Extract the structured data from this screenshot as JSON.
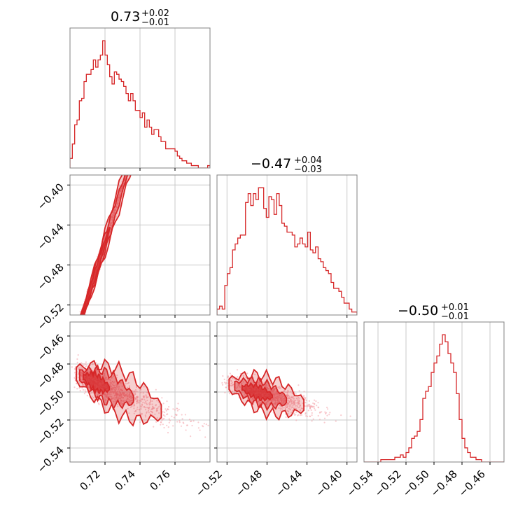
{
  "chart_data": {
    "type": "corner",
    "color": "#d62728",
    "parameters": [
      {
        "title": {
          "median": "0.73",
          "plus": "+0.02",
          "minus": "−0.01"
        },
        "range": [
          0.7,
          0.78
        ],
        "ticks": [
          0.72,
          0.74,
          0.76
        ],
        "tick_labels": [
          "0.72",
          "0.74",
          "0.76"
        ]
      },
      {
        "title": {
          "median": "−0.47",
          "plus": "+0.04",
          "minus": "−0.03"
        },
        "range": [
          -0.53,
          -0.39
        ],
        "ticks": [
          -0.52,
          -0.48,
          -0.44,
          -0.4
        ],
        "tick_labels": [
          "−0.52",
          "−0.48",
          "−0.44",
          "−0.40"
        ]
      },
      {
        "title": {
          "median": "−0.50",
          "plus": "+0.01",
          "minus": "−0.01"
        },
        "range": [
          -0.55,
          -0.45
        ],
        "ticks": [
          -0.54,
          -0.52,
          -0.5,
          -0.48,
          -0.46
        ],
        "tick_labels": [
          "−0.54",
          "−0.52",
          "−0.50",
          "−0.48",
          "−0.46"
        ]
      }
    ],
    "histograms": [
      {
        "param": 0,
        "counts": [
          4,
          10,
          18,
          20,
          28,
          29,
          36,
          39,
          39,
          41,
          45,
          42,
          45,
          47,
          53,
          47,
          43,
          38,
          35,
          40,
          39,
          37,
          36,
          34,
          31,
          28,
          31,
          28,
          24,
          24,
          21,
          23,
          17,
          20,
          17,
          14,
          16,
          16,
          13,
          11,
          11,
          8,
          8,
          8,
          8,
          7,
          5,
          4,
          3,
          3,
          2,
          2,
          1,
          1,
          1,
          0,
          0,
          0,
          0,
          1
        ]
      },
      {
        "param": 1,
        "counts": [
          2,
          3,
          2,
          10,
          14,
          16,
          22,
          24,
          26,
          27,
          27,
          38,
          41,
          37,
          41,
          39,
          43,
          43,
          36,
          33,
          40,
          39,
          34,
          41,
          37,
          31,
          30,
          28,
          28,
          27,
          23,
          24,
          26,
          24,
          23,
          28,
          22,
          21,
          23,
          19,
          18,
          16,
          15,
          14,
          11,
          9,
          9,
          8,
          6,
          4,
          4,
          2,
          1,
          1
        ]
      },
      {
        "param": 2,
        "counts": [
          0,
          0,
          0,
          0,
          0,
          0,
          1,
          1,
          1,
          1,
          1,
          2,
          2,
          3,
          2,
          4,
          6,
          10,
          11,
          13,
          18,
          27,
          30,
          32,
          38,
          42,
          45,
          50,
          54,
          51,
          46,
          42,
          38,
          29,
          18,
          10,
          6,
          4,
          2,
          2,
          1,
          1,
          0,
          0,
          0,
          0,
          0,
          0,
          0,
          0
        ]
      }
    ],
    "pairs": [
      {
        "x_param": 0,
        "y_param": 1,
        "slope": 5.6,
        "intercept": -4.49,
        "scatter": 0.004,
        "n": 900
      },
      {
        "x_param": 0,
        "y_param": 2,
        "slope": -0.55,
        "intercept": -0.1,
        "scatter": 0.005,
        "n": 900
      },
      {
        "x_param": 1,
        "y_param": 2,
        "slope": -0.2,
        "intercept": -0.598,
        "scatter": 0.004,
        "n": 900
      }
    ],
    "grid": true,
    "legend": false
  }
}
